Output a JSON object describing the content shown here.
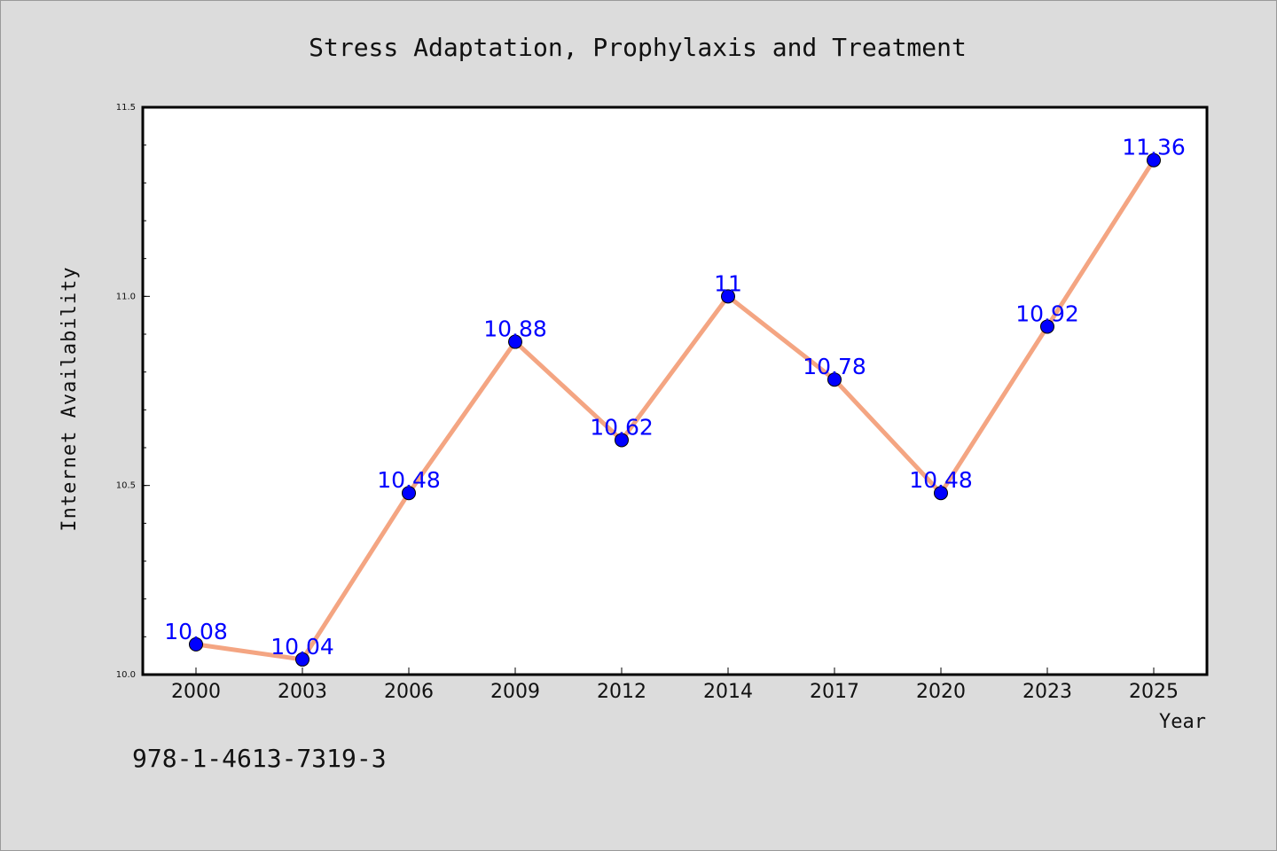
{
  "chart_data": {
    "type": "line",
    "title": "Stress Adaptation, Prophylaxis and Treatment",
    "xlabel": "Year",
    "ylabel": "Internet Availability",
    "categories": [
      "2000",
      "2003",
      "2006",
      "2009",
      "2012",
      "2014",
      "2017",
      "2020",
      "2023",
      "2025"
    ],
    "series": [
      {
        "values": [
          10.08,
          10.04,
          10.48,
          10.88,
          10.62,
          11,
          10.78,
          10.48,
          10.92,
          11.36
        ],
        "labels": [
          "10.08",
          "10.04",
          "10.48",
          "10.88",
          "10.62",
          "11",
          "10.78",
          "10.48",
          "10.92",
          "11.36"
        ],
        "line_color": "#f4a582",
        "marker_color": "#0000ff"
      }
    ],
    "ylim": [
      10.0,
      11.5
    ],
    "yticks": [
      "10.0",
      "10.5",
      "11.0",
      "11.5"
    ],
    "grid": false,
    "legend": "none"
  },
  "footer": {
    "code": "978-1-4613-7319-3"
  },
  "colors": {
    "background": "#dcdcdc",
    "plot_background": "#ffffff",
    "label_color": "#0000ff"
  }
}
